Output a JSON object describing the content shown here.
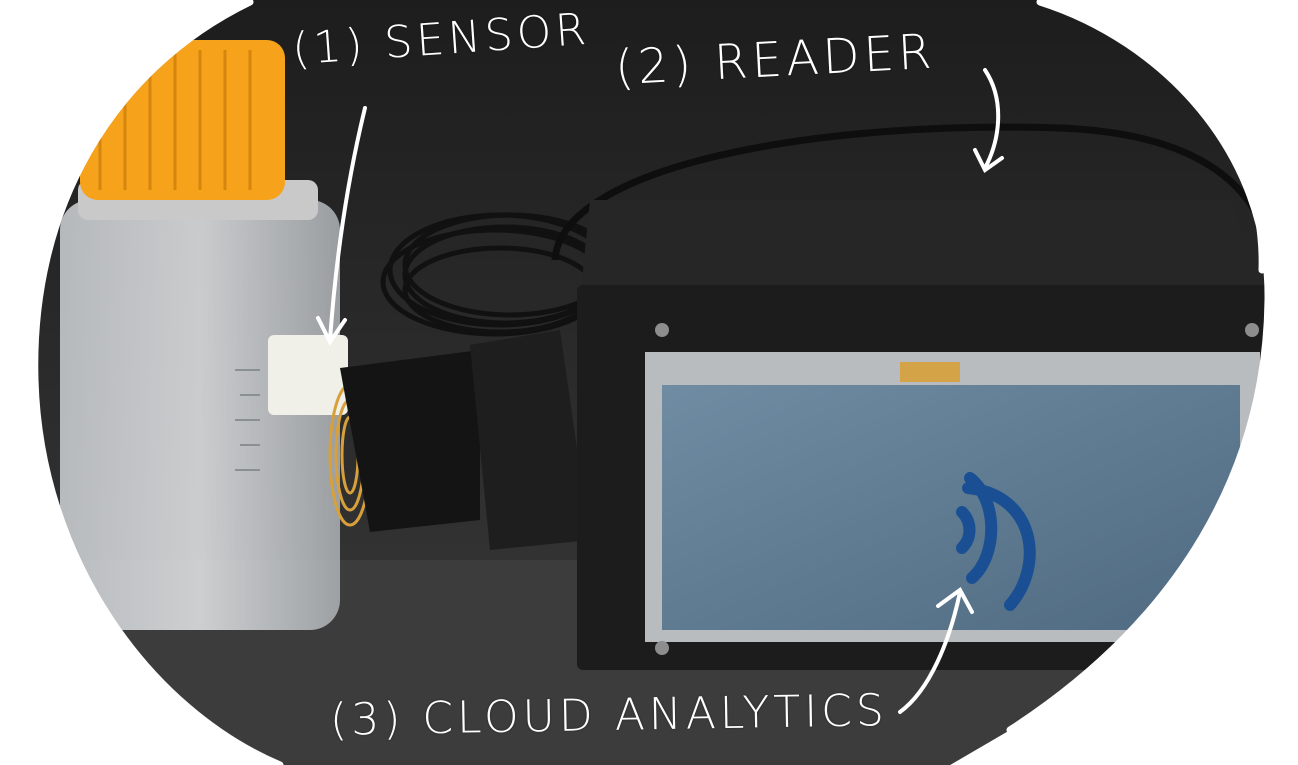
{
  "labels": {
    "sensor": "(1) SENSOR",
    "reader": "(2) READER",
    "cloud": "(3) CLOUD ANALYTICS"
  },
  "colors": {
    "backdrop": "#2b2b2b",
    "cap": "#f6a21a",
    "enclosure": "#1c1c1c",
    "screen": "#5e7b93",
    "wifi": "#1b4f93",
    "coil": "#d7a03a",
    "annotation": "#ffffff"
  },
  "icons": [
    "wifi-icon"
  ]
}
